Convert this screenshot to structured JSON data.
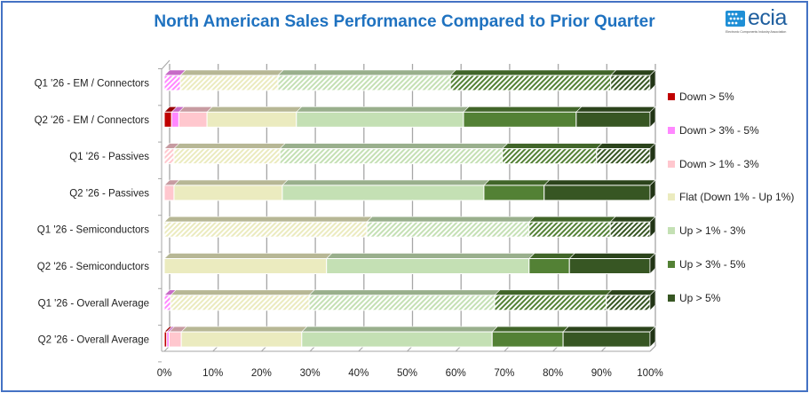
{
  "page": {
    "title": "North American Sales Performance Compared to Prior Quarter",
    "logo": {
      "word": "ecia",
      "tagline": "Electronic Components Industry Association"
    }
  },
  "chart_data": {
    "type": "bar",
    "orientation": "horizontal",
    "stacked": "100%",
    "style": "3d",
    "title": "North American Sales Performance Compared to Prior Quarter",
    "xlabel": "",
    "ylabel": "",
    "xlim": [
      0,
      100
    ],
    "x_ticks": [
      "0%",
      "10%",
      "20%",
      "30%",
      "40%",
      "50%",
      "60%",
      "70%",
      "80%",
      "90%",
      "100%"
    ],
    "grid": true,
    "legend_position": "right",
    "categories": [
      "Q1 '26 - EM / Connectors",
      "Q2 '26 - EM / Connectors",
      "Q1 '26 - Passives",
      "Q2 '26 - Passives",
      "Q1 '26 - Semiconductors",
      "Q2 '26 - Semiconductors",
      "Q1 '26 - Overall Average",
      "Q2 '26 - Overall Average"
    ],
    "hatched_categories": [
      "Q1 '26 - EM / Connectors",
      "Q1 '26 - Passives",
      "Q1 '26 - Semiconductors",
      "Q1 '26 - Overall Average"
    ],
    "series": [
      {
        "name": "Down > 5%",
        "color": "#c00000",
        "values": [
          0,
          1.5,
          0,
          0,
          0,
          0,
          0,
          0.5
        ]
      },
      {
        "name": "Down > 3% - 5%",
        "color": "#ff88ff",
        "values": [
          3.3,
          1.5,
          0,
          0,
          0,
          0,
          1.3,
          0.5
        ]
      },
      {
        "name": "Down > 1% - 3%",
        "color": "#ffc7ce",
        "values": [
          0,
          5.8,
          2,
          2,
          0,
          0,
          0,
          2.5
        ]
      },
      {
        "name": "Flat (Down 1% - Up 1%)",
        "color": "#ebebbf",
        "values": [
          20.1,
          18.4,
          21.8,
          22.3,
          41.7,
          33.4,
          28.5,
          24.8
        ]
      },
      {
        "name": "Up > 1% - 3%",
        "color": "#c4e0b4",
        "values": [
          35.5,
          34.4,
          45.8,
          41.5,
          33.4,
          41.7,
          38.2,
          39.2
        ]
      },
      {
        "name": "Up > 3% - 5%",
        "color": "#538135",
        "values": [
          33,
          23.2,
          19.4,
          12.4,
          16.7,
          8.3,
          23,
          14.6
        ]
      },
      {
        "name": "Up > 5%",
        "color": "#375623",
        "values": [
          8.1,
          15.2,
          11,
          21.8,
          8.2,
          16.6,
          9,
          17.9
        ]
      }
    ]
  }
}
